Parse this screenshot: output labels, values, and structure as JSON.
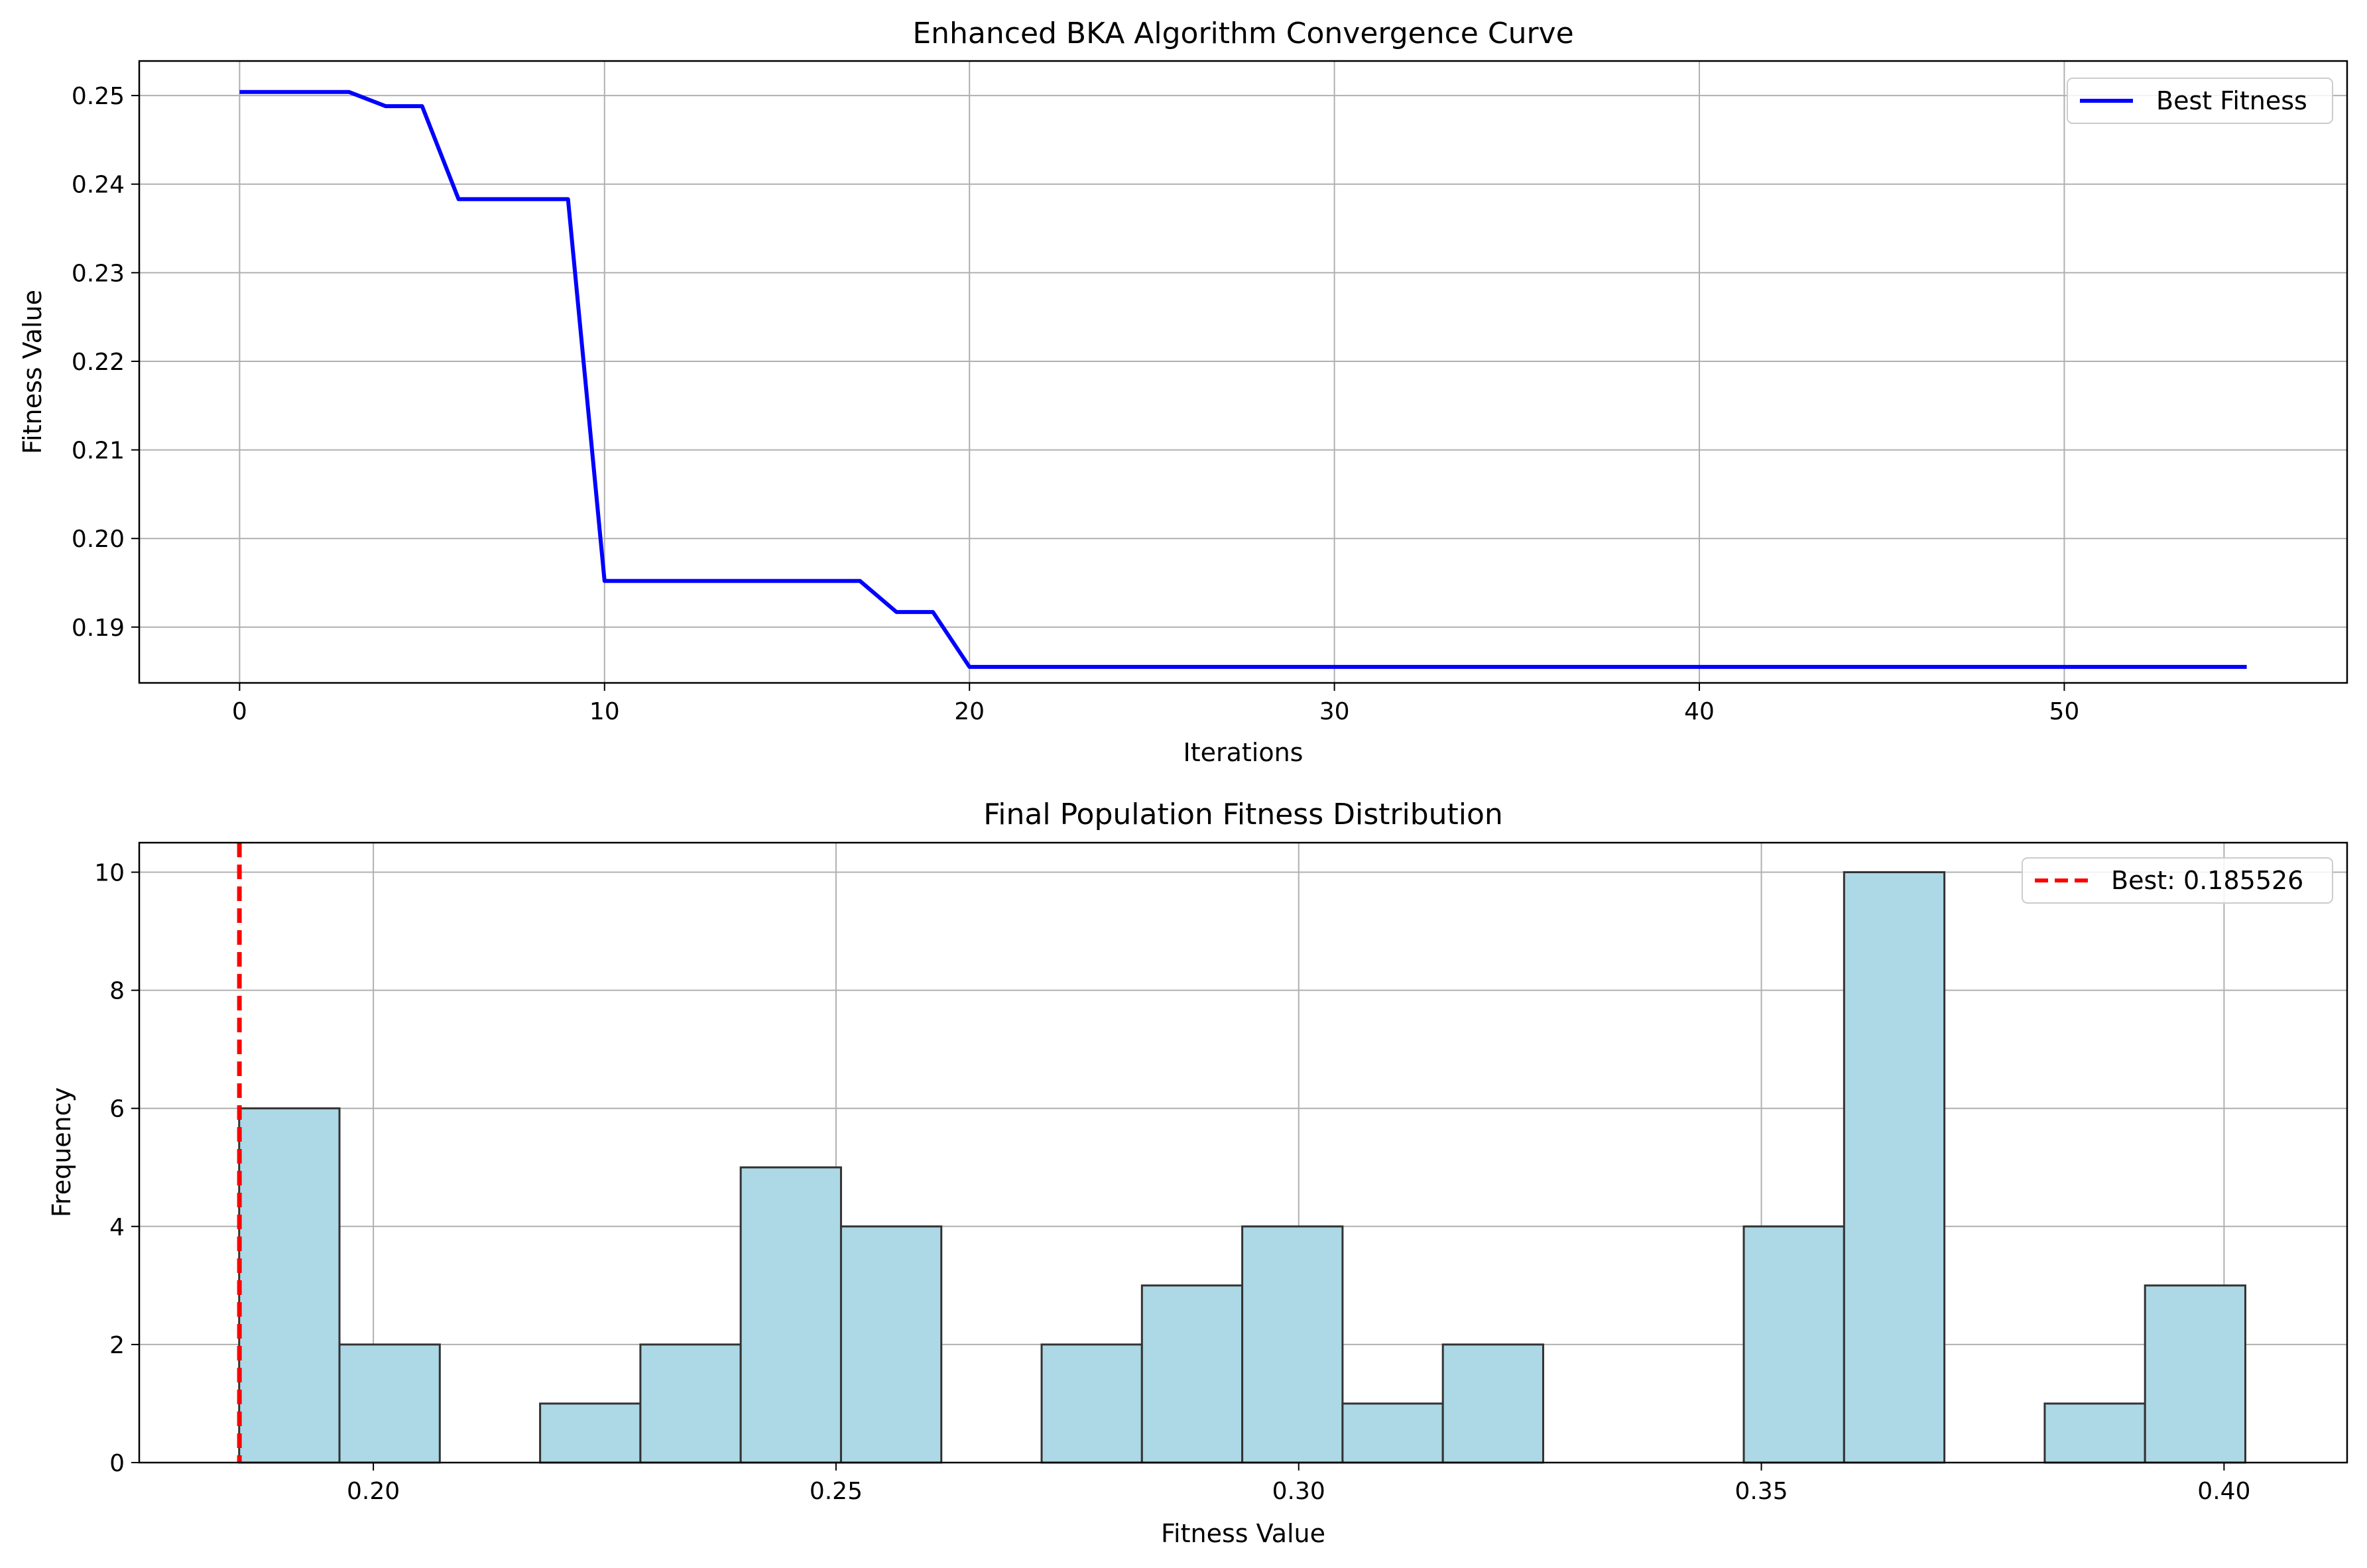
{
  "chart_data": [
    {
      "type": "line",
      "title": "Enhanced BKA Algorithm Convergence Curve",
      "xlabel": "Iterations",
      "ylabel": "Fitness Value",
      "xlim": [
        -2.75,
        57.75
      ],
      "ylim": [
        0.1837,
        0.2539
      ],
      "xticks": [
        0,
        10,
        20,
        30,
        40,
        50
      ],
      "yticks": [
        0.19,
        0.2,
        0.21,
        0.22,
        0.23,
        0.24,
        0.25
      ],
      "xtick_labels": [
        "0",
        "10",
        "20",
        "30",
        "40",
        "50"
      ],
      "ytick_labels": [
        "0.19",
        "0.20",
        "0.21",
        "0.22",
        "0.23",
        "0.24",
        "0.25"
      ],
      "grid": true,
      "legend": "top-right",
      "series": [
        {
          "name": "Best Fitness",
          "color": "#0000ff",
          "x": [
            0,
            1,
            2,
            3,
            4,
            5,
            6,
            7,
            8,
            9,
            10,
            11,
            12,
            13,
            14,
            15,
            16,
            17,
            18,
            19,
            20,
            21,
            22,
            23,
            24,
            25,
            26,
            27,
            28,
            29,
            30,
            31,
            32,
            33,
            34,
            35,
            36,
            37,
            38,
            39,
            40,
            41,
            42,
            43,
            44,
            45,
            46,
            47,
            48,
            49,
            50,
            51,
            52,
            53,
            54,
            55
          ],
          "y": [
            0.2504,
            0.2504,
            0.2504,
            0.2504,
            0.2488,
            0.2488,
            0.2383,
            0.2383,
            0.2383,
            0.2383,
            0.1952,
            0.1952,
            0.1952,
            0.1952,
            0.1952,
            0.1952,
            0.1952,
            0.1952,
            0.1917,
            0.1917,
            0.1855,
            0.1855,
            0.1855,
            0.1855,
            0.1855,
            0.1855,
            0.1855,
            0.1855,
            0.1855,
            0.1855,
            0.1855,
            0.1855,
            0.1855,
            0.1855,
            0.1855,
            0.1855,
            0.1855,
            0.1855,
            0.1855,
            0.1855,
            0.1855,
            0.1855,
            0.1855,
            0.1855,
            0.1855,
            0.1855,
            0.1855,
            0.1855,
            0.1855,
            0.1855,
            0.1855,
            0.1855,
            0.1855,
            0.1855,
            0.1855,
            0.1855
          ]
        }
      ]
    },
    {
      "type": "bar",
      "title": "Final Population Fitness Distribution",
      "xlabel": "Fitness Value",
      "ylabel": "Frequency",
      "xlim": [
        0.1747,
        0.4133
      ],
      "ylim": [
        0,
        10.5
      ],
      "xticks": [
        0.2,
        0.25,
        0.3,
        0.35,
        0.4
      ],
      "yticks": [
        0,
        2,
        4,
        6,
        8,
        10
      ],
      "xtick_labels": [
        "0.20",
        "0.25",
        "0.30",
        "0.35",
        "0.40"
      ],
      "ytick_labels": [
        "0",
        "2",
        "4",
        "6",
        "8",
        "10"
      ],
      "grid": true,
      "legend": "top-right",
      "bar_color": "#add8e6",
      "edge_color": "#333333",
      "bin_edges": [
        0.1855,
        0.19634,
        0.20718,
        0.21802,
        0.22886,
        0.2397,
        0.25054,
        0.26138,
        0.27222,
        0.28306,
        0.2939,
        0.30474,
        0.31558,
        0.32642,
        0.33726,
        0.3481,
        0.35894,
        0.36978,
        0.38062,
        0.39146,
        0.4023
      ],
      "values": [
        6,
        2,
        0,
        1,
        2,
        5,
        4,
        0,
        2,
        3,
        4,
        1,
        2,
        0,
        0,
        4,
        10,
        0,
        1,
        3
      ],
      "reference_line": {
        "name": "Best: 0.185526",
        "x": 0.185526,
        "color": "#ff0000",
        "style": "dashed"
      }
    }
  ]
}
